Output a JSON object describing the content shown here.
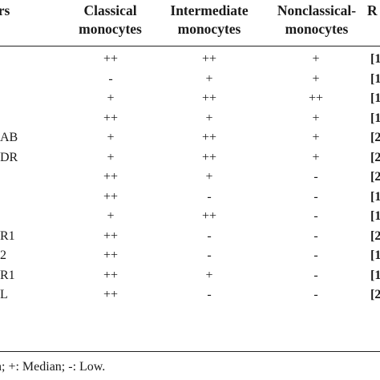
{
  "header": {
    "markers": "ers",
    "classical": [
      "Classical",
      "monocytes"
    ],
    "intermediate": [
      "Intermediate",
      "monocytes"
    ],
    "nonclassical": [
      "Nonclassical-",
      "monocytes"
    ],
    "ref": "R"
  },
  "rows": [
    {
      "marker": "",
      "classical": "++",
      "intermediate": "++",
      "nonclassical": "+",
      "ref": "[1"
    },
    {
      "marker": "",
      "classical": "-",
      "intermediate": "+",
      "nonclassical": "+",
      "ref": "[1"
    },
    {
      "marker": "",
      "classical": "+",
      "intermediate": "++",
      "nonclassical": "++",
      "ref": "[1"
    },
    {
      "marker": "",
      "classical": "++",
      "intermediate": "+",
      "nonclassical": "+",
      "ref": "[1"
    },
    {
      "marker": "AB",
      "classical": "+",
      "intermediate": "++",
      "nonclassical": "+",
      "ref": "[2"
    },
    {
      "marker": "DR",
      "classical": "+",
      "intermediate": "++",
      "nonclassical": "+",
      "ref": "[2"
    },
    {
      "marker": "",
      "classical": "++",
      "intermediate": "+",
      "nonclassical": "-",
      "ref": "[2"
    },
    {
      "marker": "",
      "classical": "++",
      "intermediate": "-",
      "nonclassical": "-",
      "ref": "[1"
    },
    {
      "marker": "",
      "classical": "+",
      "intermediate": "++",
      "nonclassical": "-",
      "ref": "[1"
    },
    {
      "marker": "R1",
      "classical": "++",
      "intermediate": "-",
      "nonclassical": "-",
      "ref": "[2"
    },
    {
      "marker": "2",
      "classical": "++",
      "intermediate": "-",
      "nonclassical": "-",
      "ref": "[1"
    },
    {
      "marker": "R1",
      "classical": "++",
      "intermediate": "+",
      "nonclassical": "-",
      "ref": "[1"
    },
    {
      "marker": "L",
      "classical": "++",
      "intermediate": "-",
      "nonclassical": "-",
      "ref": "[2"
    }
  ],
  "footnote": "n; +: Median; -: Low."
}
